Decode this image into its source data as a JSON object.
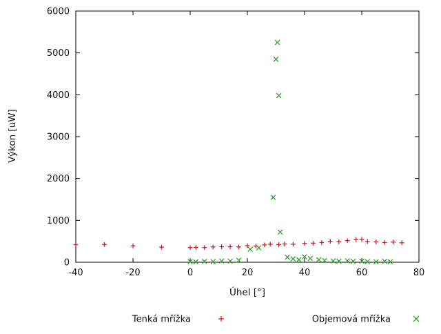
{
  "chart": {
    "xlabel": "Úhel [°]",
    "ylabel": "Výkon [uW]"
  },
  "chart_data": {
    "type": "scatter",
    "title": "",
    "xlabel": "Úhel [°]",
    "ylabel": "Výkon [uW]",
    "xlim": [
      -40,
      80
    ],
    "ylim": [
      0,
      6000
    ],
    "xticks": [
      -40,
      -20,
      0,
      20,
      40,
      60,
      80
    ],
    "yticks": [
      0,
      1000,
      2000,
      3000,
      4000,
      5000,
      6000
    ],
    "grid": false,
    "legend_position": "bottom-center",
    "border_color": "#000000",
    "series": [
      {
        "name": "Tenká mřížka",
        "marker": "plus",
        "color": "#cc2222",
        "points": [
          [
            -40,
            420
          ],
          [
            -30,
            425
          ],
          [
            -20,
            390
          ],
          [
            -10,
            360
          ],
          [
            0,
            350
          ],
          [
            2,
            355
          ],
          [
            5,
            350
          ],
          [
            8,
            365
          ],
          [
            11,
            370
          ],
          [
            14,
            370
          ],
          [
            17,
            365
          ],
          [
            20,
            395
          ],
          [
            23,
            385
          ],
          [
            26,
            415
          ],
          [
            28,
            430
          ],
          [
            31,
            420
          ],
          [
            33,
            435
          ],
          [
            36,
            430
          ],
          [
            40,
            450
          ],
          [
            43,
            455
          ],
          [
            46,
            470
          ],
          [
            49,
            500
          ],
          [
            52,
            490
          ],
          [
            55,
            515
          ],
          [
            58,
            540
          ],
          [
            60,
            545
          ],
          [
            62,
            495
          ],
          [
            65,
            485
          ],
          [
            68,
            470
          ],
          [
            71,
            480
          ],
          [
            74,
            465
          ]
        ]
      },
      {
        "name": "Objemová mřížka",
        "marker": "cross",
        "color": "#33a02c",
        "points": [
          [
            0,
            15
          ],
          [
            2,
            10
          ],
          [
            5,
            20
          ],
          [
            8,
            15
          ],
          [
            11,
            30
          ],
          [
            14,
            25
          ],
          [
            17,
            45
          ],
          [
            21,
            310
          ],
          [
            24,
            345
          ],
          [
            29,
            1550
          ],
          [
            30,
            4850
          ],
          [
            30.5,
            5250
          ],
          [
            31,
            3980
          ],
          [
            31.5,
            720
          ],
          [
            34,
            120
          ],
          [
            36,
            80
          ],
          [
            38,
            60
          ],
          [
            40,
            130
          ],
          [
            42,
            90
          ],
          [
            45,
            60
          ],
          [
            47,
            40
          ],
          [
            50,
            30
          ],
          [
            52,
            25
          ],
          [
            55,
            35
          ],
          [
            57,
            20
          ],
          [
            60,
            25
          ],
          [
            62,
            15
          ],
          [
            65,
            10
          ],
          [
            68,
            20
          ],
          [
            70,
            10
          ]
        ]
      }
    ]
  }
}
